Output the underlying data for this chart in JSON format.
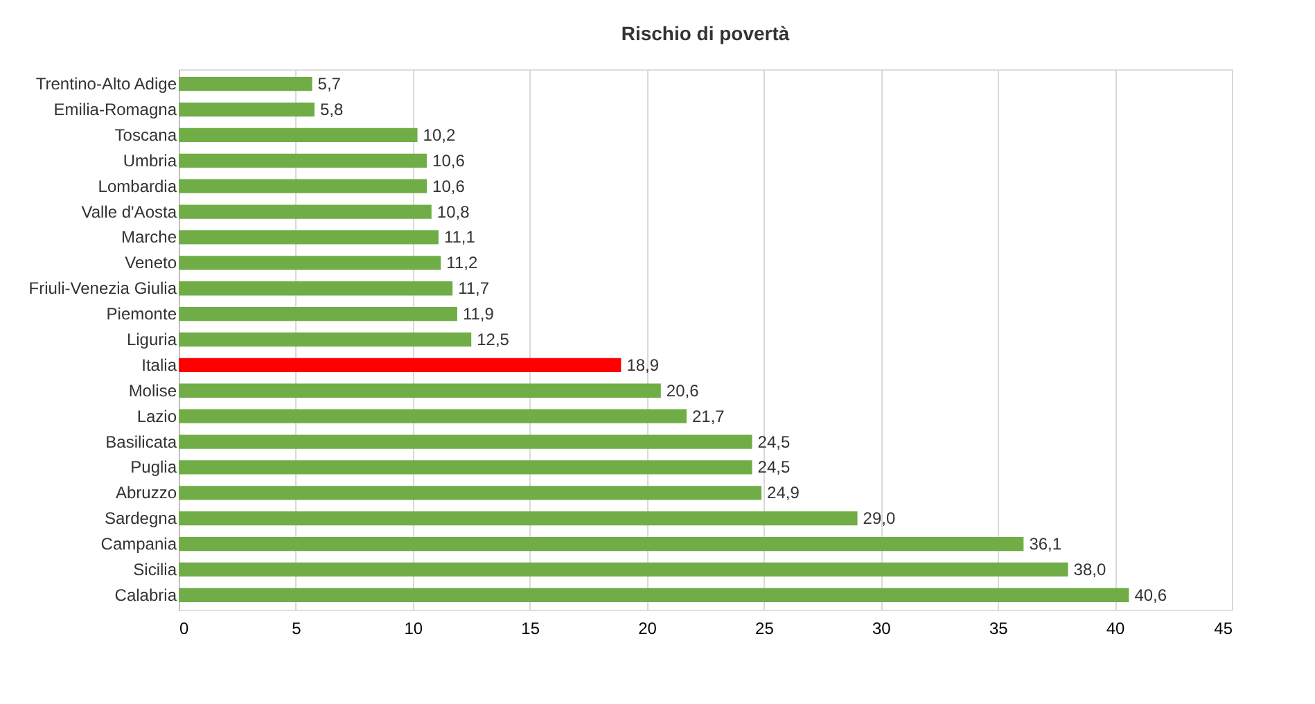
{
  "chart_data": {
    "type": "bar",
    "orientation": "horizontal",
    "title": "Rischio di povertà",
    "categories": [
      "Trentino-Alto Adige",
      "Emilia-Romagna",
      "Toscana",
      "Umbria",
      "Lombardia",
      "Valle d'Aosta",
      "Marche",
      "Veneto",
      "Friuli-Venezia Giulia",
      "Piemonte",
      "Liguria",
      "Italia",
      "Molise",
      "Lazio",
      "Basilicata",
      "Puglia",
      "Abruzzo",
      "Sardegna",
      "Campania",
      "Sicilia",
      "Calabria"
    ],
    "values": [
      5.7,
      5.8,
      10.2,
      10.6,
      10.6,
      10.8,
      11.1,
      11.2,
      11.7,
      11.9,
      12.5,
      18.9,
      20.6,
      21.7,
      24.5,
      24.5,
      24.9,
      29.0,
      36.1,
      38.0,
      40.6
    ],
    "value_labels": [
      "5,7",
      "5,8",
      "10,2",
      "10,6",
      "10,6",
      "10,8",
      "11,1",
      "11,2",
      "11,7",
      "11,9",
      "12,5",
      "18,9",
      "20,6",
      "21,7",
      "24,5",
      "24,5",
      "24,9",
      "29,0",
      "36,1",
      "38,0",
      "40,6"
    ],
    "colors": [
      "#70ad47",
      "#70ad47",
      "#70ad47",
      "#70ad47",
      "#70ad47",
      "#70ad47",
      "#70ad47",
      "#70ad47",
      "#70ad47",
      "#70ad47",
      "#70ad47",
      "#ff0000",
      "#70ad47",
      "#70ad47",
      "#70ad47",
      "#70ad47",
      "#70ad47",
      "#70ad47",
      "#70ad47",
      "#70ad47",
      "#70ad47"
    ],
    "xlim": [
      0,
      45
    ],
    "xticks": [
      0,
      5,
      10,
      15,
      20,
      25,
      30,
      35,
      40,
      45
    ],
    "grid": "x"
  }
}
